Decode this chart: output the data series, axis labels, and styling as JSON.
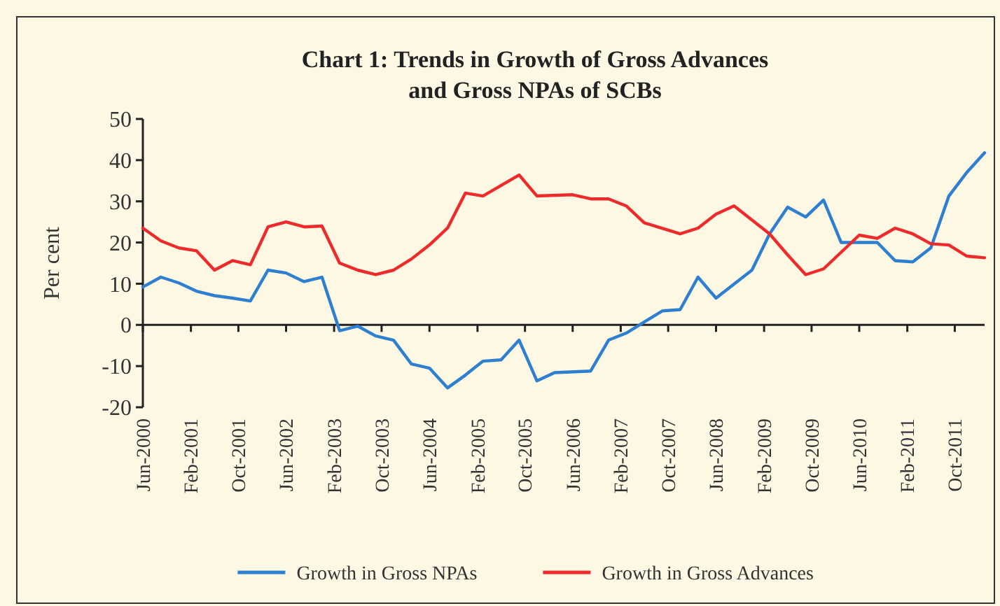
{
  "chart_data": {
    "type": "line",
    "title": "Chart 1: Trends in Growth of Gross Advances and Gross NPAs of SCBs",
    "ylabel": "Per cent",
    "xlim": [
      "2000-06",
      "2012-03"
    ],
    "xticks": [
      {
        "value": "2000-06",
        "label": "Jun-2000"
      },
      {
        "value": "2001-02",
        "label": "Feb-2001"
      },
      {
        "value": "2001-10",
        "label": "Oct-2001"
      },
      {
        "value": "2002-06",
        "label": "Jun-2002"
      },
      {
        "value": "2003-02",
        "label": "Feb-2003"
      },
      {
        "value": "2003-10",
        "label": "Oct-2003"
      },
      {
        "value": "2004-06",
        "label": "Jun-2004"
      },
      {
        "value": "2005-02",
        "label": "Feb-2005"
      },
      {
        "value": "2005-10",
        "label": "Oct-2005"
      },
      {
        "value": "2006-06",
        "label": "Jun-2006"
      },
      {
        "value": "2007-02",
        "label": "Feb-2007"
      },
      {
        "value": "2007-10",
        "label": "Oct-2007"
      },
      {
        "value": "2008-06",
        "label": "Jun-2008"
      },
      {
        "value": "2009-02",
        "label": "Feb-2009"
      },
      {
        "value": "2009-10",
        "label": "Oct-2009"
      },
      {
        "value": "2010-06",
        "label": "Jun-2010"
      },
      {
        "value": "2011-02",
        "label": "Feb-2011"
      },
      {
        "value": "2011-10",
        "label": "Oct-2011"
      }
    ],
    "ylim": [
      -20,
      50
    ],
    "yticks": [
      -20,
      -10,
      0,
      10,
      20,
      30,
      40,
      50
    ],
    "legend": "bottom",
    "marker": "none",
    "line_style": "solid",
    "series": [
      {
        "name": "Growth in Gross NPAs",
        "color": "#2e7fd0",
        "x": [
          "2000-06",
          "2000-09",
          "2000-12",
          "2001-03",
          "2001-06",
          "2001-09",
          "2001-12",
          "2002-03",
          "2002-06",
          "2002-09",
          "2002-12",
          "2003-03",
          "2003-06",
          "2003-09",
          "2003-12",
          "2004-03",
          "2004-06",
          "2004-09",
          "2004-12",
          "2005-03",
          "2005-06",
          "2005-09",
          "2005-12",
          "2006-03",
          "2006-09",
          "2006-12",
          "2007-03",
          "2007-06",
          "2007-09",
          "2007-12",
          "2008-03",
          "2008-06",
          "2008-12",
          "2009-03",
          "2009-06",
          "2009-09",
          "2009-12",
          "2010-03",
          "2010-09",
          "2010-12",
          "2011-03",
          "2011-06",
          "2011-09",
          "2011-12",
          "2012-03"
        ],
        "values": [
          9.2,
          11.6,
          10.2,
          8.2,
          7.1,
          6.5,
          5.8,
          13.3,
          12.6,
          10.5,
          11.6,
          -1.4,
          -0.3,
          -2.7,
          -3.7,
          -9.5,
          -10.5,
          -15.3,
          -12.2,
          -8.8,
          -8.5,
          -3.7,
          -13.6,
          -11.6,
          -11.2,
          -3.7,
          -2,
          0.7,
          3.4,
          3.7,
          11.6,
          6.5,
          13.3,
          22.1,
          28.6,
          26.2,
          30.3,
          20,
          20,
          15.6,
          15.3,
          18.7,
          31.3,
          37,
          41.8
        ]
      },
      {
        "name": "Growth in Gross Advances",
        "color": "#ee2b2b",
        "x": [
          "2000-06",
          "2000-09",
          "2000-12",
          "2001-03",
          "2001-06",
          "2001-09",
          "2001-12",
          "2002-03",
          "2002-06",
          "2002-09",
          "2002-12",
          "2003-03",
          "2003-06",
          "2003-09",
          "2003-12",
          "2004-03",
          "2004-06",
          "2004-09",
          "2004-12",
          "2005-03",
          "2005-09",
          "2005-12",
          "2006-06",
          "2006-09",
          "2006-12",
          "2007-03",
          "2007-06",
          "2007-12",
          "2008-03",
          "2008-06",
          "2008-09",
          "2009-03",
          "2009-06",
          "2009-09",
          "2009-12",
          "2010-06",
          "2010-09",
          "2010-12",
          "2011-03",
          "2011-06",
          "2011-09",
          "2011-12",
          "2012-03"
        ],
        "values": [
          23.5,
          20.4,
          18.7,
          18,
          13.3,
          15.6,
          14.6,
          23.8,
          25,
          23.8,
          24,
          15,
          13.3,
          12.2,
          13.3,
          16,
          19.4,
          23.5,
          32,
          31.3,
          36.4,
          31.3,
          31.6,
          30.6,
          30.6,
          28.9,
          24.8,
          22.1,
          23.5,
          26.9,
          28.9,
          22.1,
          17,
          12.2,
          13.6,
          21.8,
          21,
          23.5,
          22.1,
          19.7,
          19.4,
          16.7,
          16.3
        ]
      }
    ]
  }
}
